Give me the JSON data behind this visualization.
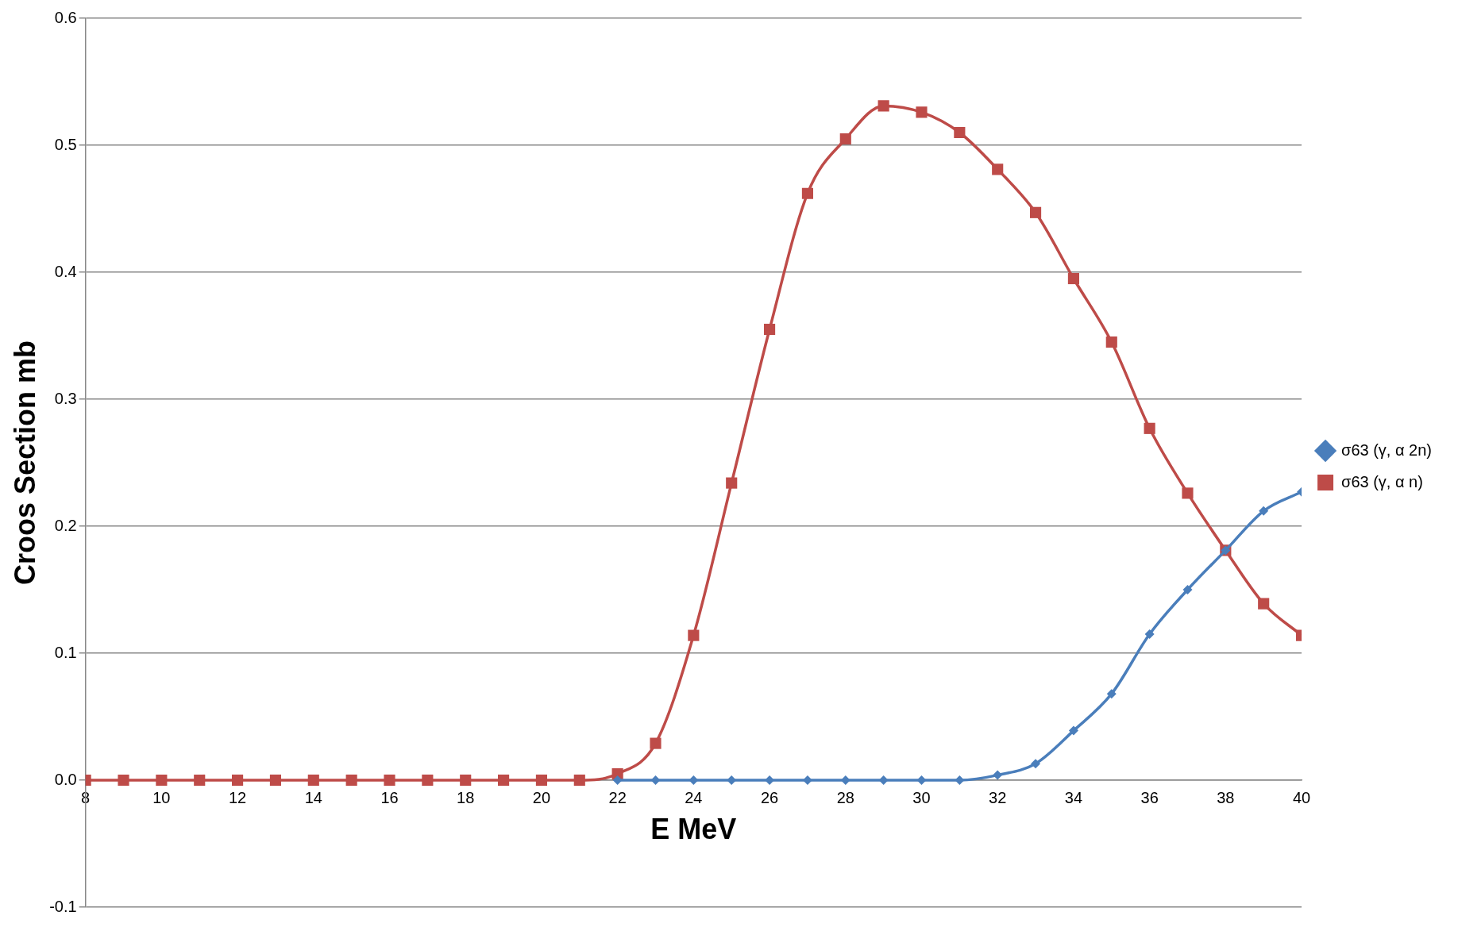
{
  "chart_data": {
    "type": "line",
    "xlabel": "E MeV",
    "ylabel": "Croos Section mb",
    "xlim": [
      8,
      40
    ],
    "xticks": [
      8,
      10,
      12,
      14,
      16,
      18,
      20,
      22,
      24,
      26,
      28,
      30,
      32,
      34,
      36,
      38,
      40
    ],
    "ylim": [
      -0.1,
      0.6
    ],
    "yticks": [
      {
        "value": -0.1,
        "label": "-0.1"
      },
      {
        "value": 0,
        "label": "0.0"
      },
      {
        "value": 0.1,
        "label": "0.1"
      },
      {
        "value": 0.2,
        "label": "0.2"
      },
      {
        "value": 0.3,
        "label": "0.3"
      },
      {
        "value": 0.4,
        "label": "0.4"
      },
      {
        "value": 0.5,
        "label": "0.5"
      },
      {
        "value": 0.6,
        "label": "0.6"
      }
    ],
    "grid": "y",
    "legend": "right",
    "line_style": "solid",
    "x": [
      8,
      9,
      10,
      11,
      12,
      13,
      14,
      15,
      16,
      17,
      18,
      19,
      20,
      21,
      22,
      23,
      24,
      25,
      26,
      27,
      28,
      29,
      30,
      31,
      32,
      33,
      34,
      35,
      36,
      37,
      38,
      39,
      40
    ],
    "series": [
      {
        "name": "σ63 (γ, α 2n)",
        "color": "#4a7ebb",
        "marker": "diamond",
        "x": [
          22,
          23,
          24,
          25,
          26,
          27,
          28,
          29,
          30,
          31,
          32,
          33,
          34,
          35,
          36,
          37,
          38,
          39,
          40
        ],
        "values": [
          0,
          0,
          0,
          0,
          0,
          0,
          0,
          0,
          0,
          0,
          0.004,
          0.013,
          0.039,
          0.068,
          0.115,
          0.15,
          0.181,
          0.212,
          0.227
        ]
      },
      {
        "name": "σ63 (γ, α n)",
        "color": "#be4b48",
        "marker": "square",
        "values": [
          0,
          0,
          0,
          0,
          0,
          0,
          0,
          0,
          0,
          0,
          0,
          0,
          0,
          0,
          0.005,
          0.029,
          0.114,
          0.234,
          0.355,
          0.462,
          0.505,
          0.531,
          0.526,
          0.51,
          0.481,
          0.447,
          0.395,
          0.345,
          0.277,
          0.226,
          0.181,
          0.139,
          0.114
        ]
      }
    ]
  }
}
